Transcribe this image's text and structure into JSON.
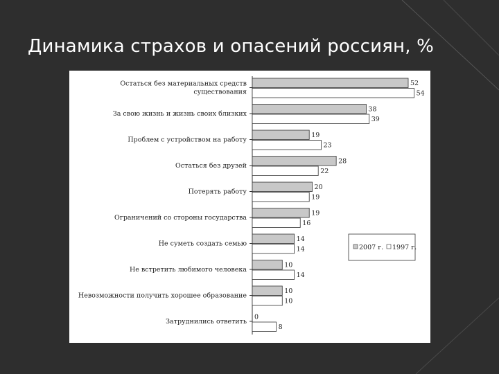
{
  "slide": {
    "title": "Динамика страхов и опасений россиян, %"
  },
  "colors": {
    "background": "#2e2e2e",
    "series_2007_fill": "#c8c8c8",
    "series_1997_fill": "#ffffff"
  },
  "chart_data": {
    "type": "bar",
    "orientation": "horizontal",
    "categories": [
      [
        "Остаться без материальных средств",
        "существования"
      ],
      [
        "За свою жизнь и жизнь своих близких"
      ],
      [
        "Проблем с устройством на работу"
      ],
      [
        "Остаться без друзей"
      ],
      [
        "Потерять работу"
      ],
      [
        "Ограничений со стороны государства"
      ],
      [
        "Не суметь создать семью"
      ],
      [
        "Не встретить любимого человека"
      ],
      [
        "Невозможности получить хорошее образование"
      ],
      [
        "Затруднились ответить"
      ]
    ],
    "series": [
      {
        "name": "2007 г.",
        "values": [
          52,
          38,
          19,
          28,
          20,
          19,
          14,
          10,
          10,
          0
        ]
      },
      {
        "name": "1997 г.",
        "values": [
          54,
          39,
          23,
          22,
          19,
          16,
          14,
          14,
          10,
          8
        ]
      }
    ],
    "xlim": [
      0,
      55
    ],
    "legend_position": "right",
    "grid": false
  }
}
